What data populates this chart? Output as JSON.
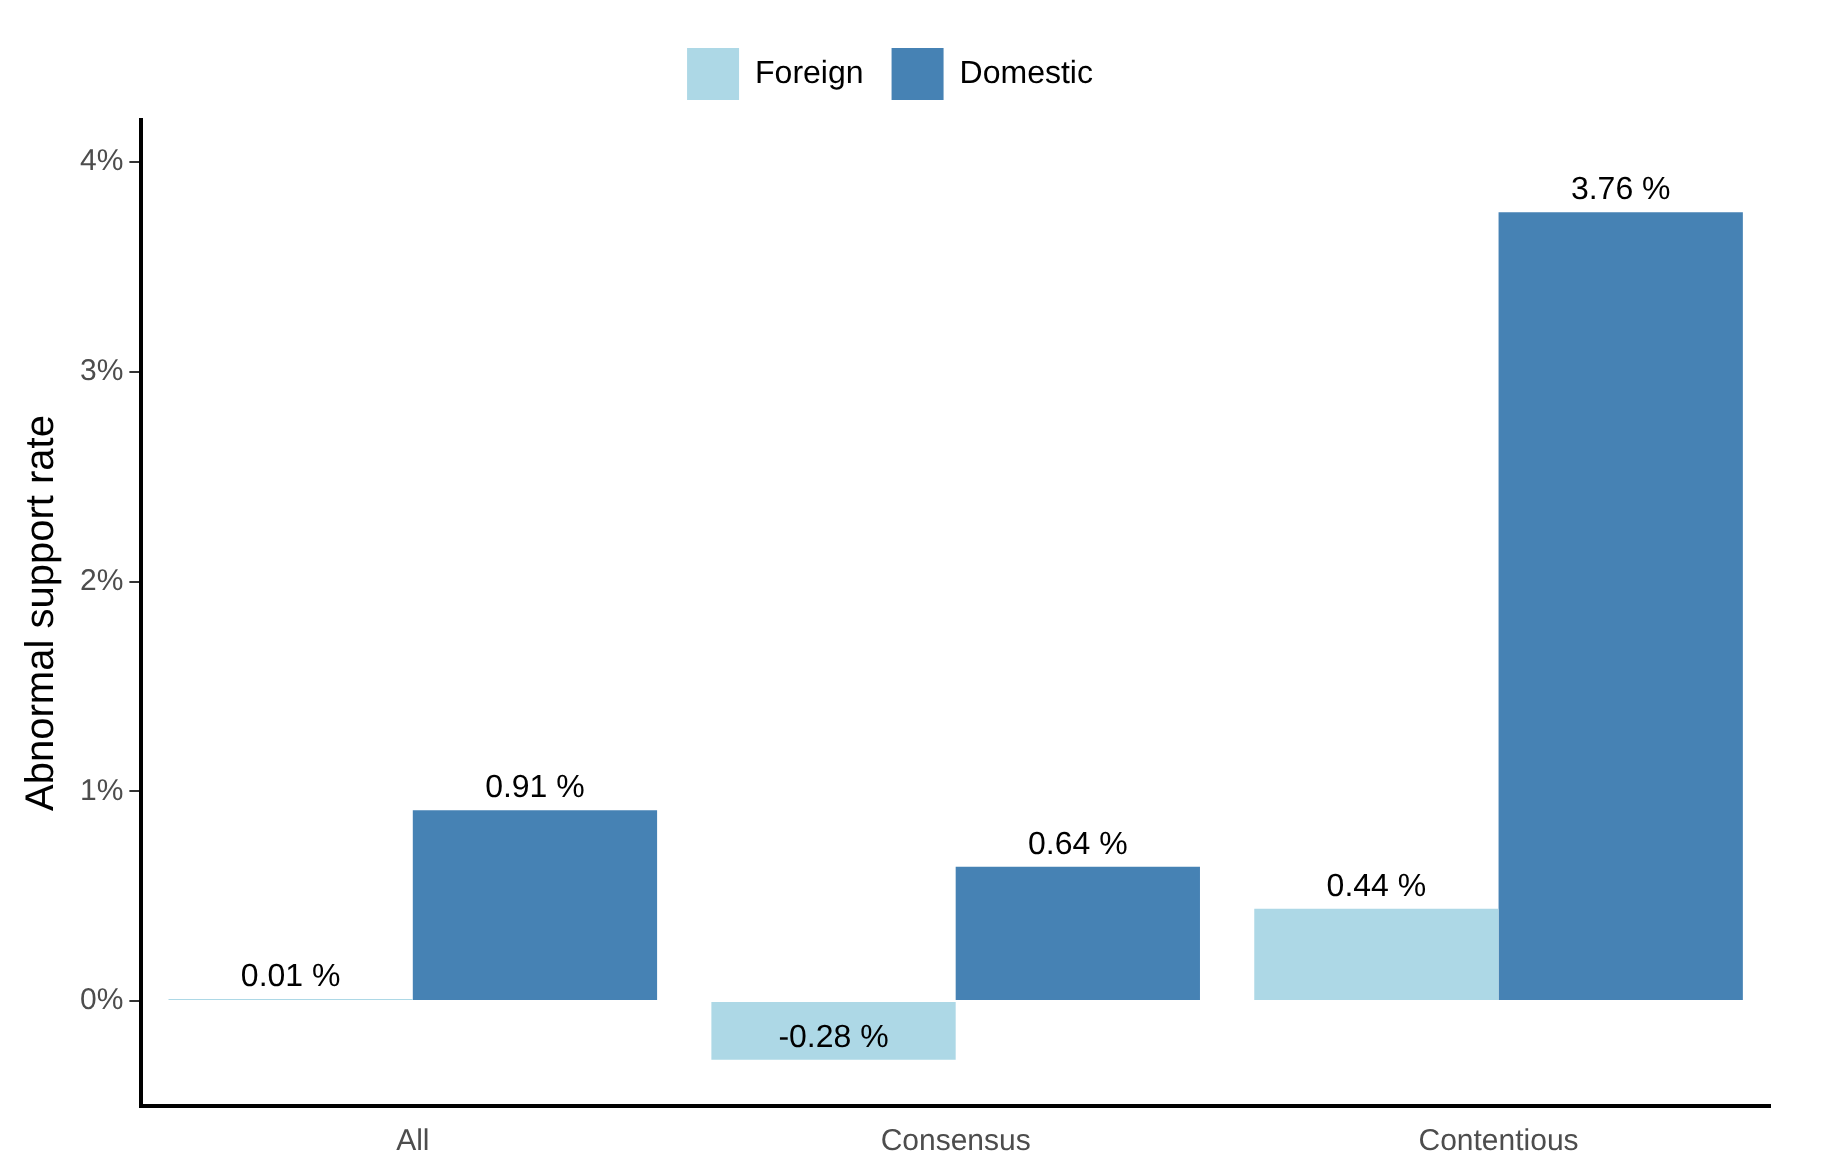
{
  "chart_data": {
    "type": "bar",
    "ylabel": "Abnormal support rate",
    "categories": [
      "All",
      "Consensus",
      "Contentious"
    ],
    "series": [
      {
        "name": "Foreign",
        "color": "#add8e6",
        "values": [
          0.01,
          -0.28,
          0.44
        ],
        "value_labels": [
          "0.01 %",
          "-0.28 %",
          "0.44 %"
        ]
      },
      {
        "name": "Domestic",
        "color": "#4682b4",
        "values": [
          0.91,
          0.64,
          3.76
        ],
        "value_labels": [
          "0.91 %",
          "0.64 %",
          "3.76 %"
        ]
      }
    ],
    "ylim": [
      -0.5,
      4.2
    ],
    "yticks": [
      {
        "value": 0,
        "label": "0%"
      },
      {
        "value": 1,
        "label": "1%"
      },
      {
        "value": 2,
        "label": "2%"
      },
      {
        "value": 3,
        "label": "3%"
      },
      {
        "value": 4,
        "label": "4%"
      }
    ],
    "grid": false,
    "legend": "top"
  }
}
